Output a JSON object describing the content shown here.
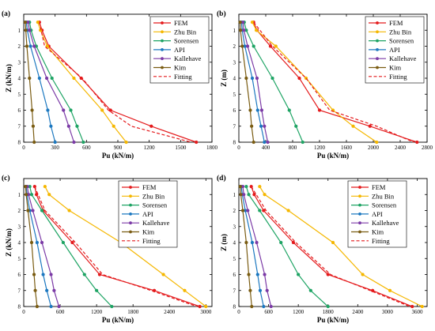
{
  "colors": {
    "FEM": "#e41a1c",
    "Zhu Bin": "#f5b700",
    "Sorensen": "#1ea464",
    "API": "#1c78c0",
    "Kallehave": "#7b3aa6",
    "Kim": "#7a5c12",
    "Fitting": "#e41a1c"
  },
  "chart_data": [
    {
      "type": "line",
      "panel_label": "(a)",
      "xlabel": "Pu (kN/m)",
      "ylabel": "Z (kN/m)",
      "xlim": [
        0,
        1800
      ],
      "ylim": [
        8,
        0
      ],
      "xticks": [
        0,
        300,
        600,
        900,
        1200,
        1500,
        1800
      ],
      "xtick_labels": [
        "0",
        "300",
        "600",
        "900",
        "1200",
        "1500",
        "1800"
      ],
      "yticks": [
        1,
        2,
        3,
        4,
        5,
        6,
        7,
        8
      ],
      "legend": [
        "FEM",
        "Zhu Bin",
        "Sorensen",
        "API",
        "Kallehave",
        "Kim",
        "Fitting"
      ],
      "legend_position": "top-right",
      "series": [
        {
          "name": "FEM",
          "x": [
            150,
            175,
            240,
            550,
            830,
            1220,
            1650
          ],
          "y": [
            0.5,
            1,
            2,
            4,
            6,
            7,
            8
          ]
        },
        {
          "name": "Zhu Bin",
          "x": [
            135,
            160,
            225,
            480,
            750,
            860,
            980
          ],
          "y": [
            0.5,
            1,
            2,
            4,
            6,
            7,
            8
          ]
        },
        {
          "name": "Sorensen",
          "x": [
            55,
            70,
            120,
            270,
            450,
            510,
            570
          ],
          "y": [
            0.5,
            1,
            2,
            4,
            6,
            7,
            8
          ]
        },
        {
          "name": "API",
          "x": [
            25,
            35,
            65,
            150,
            230,
            260,
            300
          ],
          "y": [
            0.5,
            1,
            2,
            4,
            6,
            7,
            8
          ]
        },
        {
          "name": "Kallehave",
          "x": [
            40,
            55,
            100,
            220,
            380,
            430,
            480
          ],
          "y": [
            0.5,
            1,
            2,
            4,
            6,
            7,
            8
          ]
        },
        {
          "name": "Kim",
          "x": [
            15,
            20,
            30,
            55,
            80,
            90,
            100
          ],
          "y": [
            0.5,
            1,
            2,
            4,
            6,
            7,
            8
          ]
        },
        {
          "name": "Fitting",
          "x": [
            150,
            200,
            560,
            810,
            1030,
            1600
          ],
          "y": [
            0.5,
            2,
            4,
            6,
            7,
            8
          ],
          "dashed": true
        }
      ]
    },
    {
      "type": "line",
      "panel_label": "(b)",
      "xlabel": "Pu (kN/m)",
      "ylabel": "Z (m)",
      "xlim": [
        0,
        2800
      ],
      "ylim": [
        8,
        0
      ],
      "xticks": [
        0,
        400,
        800,
        1200,
        1600,
        2000,
        2400,
        2800
      ],
      "xtick_labels": [
        "0",
        "400",
        "800",
        "1200",
        "1600",
        "2000",
        "2400",
        "2800"
      ],
      "yticks": [
        1,
        2,
        3,
        4,
        5,
        6,
        7,
        8
      ],
      "legend": [
        "FEM",
        "Zhu Bin",
        "Sorensen",
        "API",
        "Kallehave",
        "Kim",
        "Fitting"
      ],
      "legend_position": "top-right",
      "series": [
        {
          "name": "FEM",
          "x": [
            220,
            270,
            470,
            900,
            1200,
            1950,
            2650
          ],
          "y": [
            0.5,
            1,
            2,
            4,
            6,
            7,
            8
          ]
        },
        {
          "name": "Zhu Bin",
          "x": [
            200,
            260,
            550,
            1000,
            1400,
            1700,
            2050
          ],
          "y": [
            0.5,
            1,
            2,
            4,
            6,
            7,
            8
          ]
        },
        {
          "name": "Sorensen",
          "x": [
            80,
            110,
            220,
            500,
            750,
            850,
            950
          ],
          "y": [
            0.5,
            1,
            2,
            4,
            6,
            7,
            8
          ]
        },
        {
          "name": "API",
          "x": [
            40,
            50,
            90,
            200,
            280,
            330,
            380
          ],
          "y": [
            0.5,
            1,
            2,
            4,
            6,
            7,
            8
          ]
        },
        {
          "name": "Kallehave",
          "x": [
            60,
            75,
            130,
            270,
            340,
            380,
            430
          ],
          "y": [
            0.5,
            1,
            2,
            4,
            6,
            7,
            8
          ]
        },
        {
          "name": "Kim",
          "x": [
            20,
            25,
            50,
            110,
            170,
            190,
            220
          ],
          "y": [
            0.5,
            1,
            2,
            4,
            6,
            7,
            8
          ]
        },
        {
          "name": "Fitting",
          "x": [
            220,
            500,
            1000,
            1350,
            2050,
            2600
          ],
          "y": [
            0.5,
            2,
            4,
            6,
            7,
            8
          ],
          "dashed": true
        }
      ]
    },
    {
      "type": "line",
      "panel_label": "(c)",
      "xlabel": "Pu (kN/m)",
      "ylabel": "Z (kN/m)",
      "xlim": [
        0,
        3100
      ],
      "ylim": [
        8,
        0
      ],
      "xticks": [
        0,
        600,
        1200,
        1800,
        2400,
        3000
      ],
      "xtick_labels": [
        "0",
        "600",
        "1200",
        "1800",
        "2400",
        "3000"
      ],
      "yticks": [
        1,
        2,
        3,
        4,
        5,
        6,
        7,
        8
      ],
      "legend": [
        "FEM",
        "Zhu Bin",
        "Sorensen",
        "API",
        "Kallehave",
        "Kim",
        "Fitting"
      ],
      "legend_position": "top-right",
      "series": [
        {
          "name": "FEM",
          "x": [
            180,
            210,
            320,
            800,
            1250,
            2150,
            2900
          ],
          "y": [
            0.5,
            1,
            2,
            4,
            6,
            7,
            8
          ]
        },
        {
          "name": "Zhu Bin",
          "x": [
            350,
            420,
            750,
            1600,
            2300,
            2650,
            3000
          ],
          "y": [
            0.5,
            1,
            2,
            4,
            6,
            7,
            8
          ]
        },
        {
          "name": "Sorensen",
          "x": [
            100,
            130,
            300,
            650,
            1000,
            1200,
            1450
          ],
          "y": [
            0.5,
            1,
            2,
            4,
            6,
            7,
            8
          ]
        },
        {
          "name": "API",
          "x": [
            40,
            55,
            100,
            220,
            320,
            380,
            450
          ],
          "y": [
            0.5,
            1,
            2,
            4,
            6,
            7,
            8
          ]
        },
        {
          "name": "Kallehave",
          "x": [
            60,
            80,
            150,
            300,
            450,
            500,
            580
          ],
          "y": [
            0.5,
            1,
            2,
            4,
            6,
            7,
            8
          ]
        },
        {
          "name": "Kim",
          "x": [
            30,
            40,
            70,
            130,
            170,
            190,
            220
          ],
          "y": [
            0.5,
            1,
            2,
            4,
            6,
            7,
            8
          ]
        },
        {
          "name": "Fitting",
          "x": [
            180,
            350,
            850,
            1300,
            2100,
            2850
          ],
          "y": [
            0.5,
            2,
            4,
            6,
            7,
            8
          ],
          "dashed": true
        }
      ]
    },
    {
      "type": "line",
      "panel_label": "(d)",
      "xlabel": "Pu (kN/m)",
      "ylabel": "Z (m)",
      "xlim": [
        0,
        3800
      ],
      "ylim": [
        8,
        0
      ],
      "xticks": [
        0,
        600,
        1200,
        1800,
        2400,
        3000,
        3600
      ],
      "xtick_labels": [
        "0",
        "600",
        "1200",
        "1800",
        "2400",
        "3000",
        "3600"
      ],
      "yticks": [
        1,
        2,
        3,
        4,
        5,
        6,
        7,
        8
      ],
      "legend": [
        "FEM",
        "Zhu Bin",
        "Sorensen",
        "API",
        "Kallehave",
        "Kim",
        "Fitting"
      ],
      "legend_position": "top-right",
      "series": [
        {
          "name": "FEM",
          "x": [
            250,
            310,
            500,
            1100,
            1800,
            2700,
            3500
          ],
          "y": [
            0.5,
            1,
            2,
            4,
            6,
            7,
            8
          ]
        },
        {
          "name": "Zhu Bin",
          "x": [
            420,
            520,
            1000,
            1900,
            2500,
            3050,
            3700
          ],
          "y": [
            0.5,
            1,
            2,
            4,
            6,
            7,
            8
          ]
        },
        {
          "name": "Sorensen",
          "x": [
            150,
            200,
            420,
            850,
            1200,
            1450,
            1800
          ],
          "y": [
            0.5,
            1,
            2,
            4,
            6,
            7,
            8
          ]
        },
        {
          "name": "API",
          "x": [
            50,
            70,
            130,
            270,
            380,
            430,
            500
          ],
          "y": [
            0.5,
            1,
            2,
            4,
            6,
            7,
            8
          ]
        },
        {
          "name": "Kallehave",
          "x": [
            80,
            100,
            180,
            360,
            520,
            570,
            650
          ],
          "y": [
            0.5,
            1,
            2,
            4,
            6,
            7,
            8
          ]
        },
        {
          "name": "Kim",
          "x": [
            30,
            40,
            80,
            150,
            200,
            230,
            260
          ],
          "y": [
            0.5,
            1,
            2,
            4,
            6,
            7,
            8
          ]
        },
        {
          "name": "Fitting",
          "x": [
            250,
            550,
            1150,
            1850,
            2650,
            3450
          ],
          "y": [
            0.5,
            2,
            4,
            6,
            7,
            8
          ],
          "dashed": true
        }
      ]
    }
  ]
}
